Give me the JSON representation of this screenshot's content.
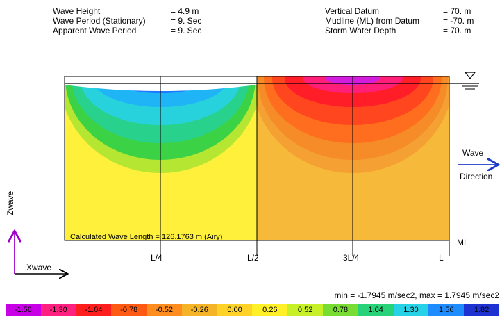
{
  "header": {
    "left": [
      {
        "label": "Wave Height",
        "value": "= 4.9 m"
      },
      {
        "label": "Wave Period (Stationary)",
        "value": "= 9. Sec"
      },
      {
        "label": "Apparent Wave Period",
        "value": "= 9. Sec"
      }
    ],
    "right": [
      {
        "label": "Vertical Datum",
        "value": "= 70. m"
      },
      {
        "label": "Mudline (ML) from Datum",
        "value": "= -70. m"
      },
      {
        "label": "Storm Water Depth",
        "value": "= 70. m"
      }
    ]
  },
  "plot": {
    "wave_length_note": "Calculated Wave Length = 126.1763 m  (Airy)",
    "x_ticks": [
      "L/4",
      "L/2",
      "3L/4",
      "L"
    ],
    "wave_direction_label_1": "Wave",
    "wave_direction_label_2": "Direction",
    "mudline_label": "ML",
    "z_axis_label": "Zwave",
    "x_axis_label": "Xwave"
  },
  "range_text": "min = -1.7945 m/sec2,  max = 1.7945 m/sec2",
  "colorbar": {
    "labels": [
      "-1.56",
      "-1.30",
      "-1.04",
      "-0.78",
      "-0.52",
      "-0.26",
      "0.00",
      "0.26",
      "0.52",
      "0.78",
      "1.04",
      "1.30",
      "1.56",
      "1.82"
    ],
    "colors": [
      "#c800e6",
      "#ff2080",
      "#ff1e1e",
      "#ff5a14",
      "#ff8c1e",
      "#f5b428",
      "#ffd228",
      "#fff028",
      "#c8f028",
      "#78dc32",
      "#28d278",
      "#28d2e6",
      "#1e8cff",
      "#1e32d2"
    ]
  },
  "chart_data": {
    "type": "heatmap",
    "title": "",
    "xlabel": "Xwave",
    "ylabel": "Zwave",
    "x_ticks": [
      "L/4",
      "L/2",
      "3L/4",
      "L"
    ],
    "min": -1.7945,
    "max": 1.7945,
    "units": "m/sec2"
  }
}
